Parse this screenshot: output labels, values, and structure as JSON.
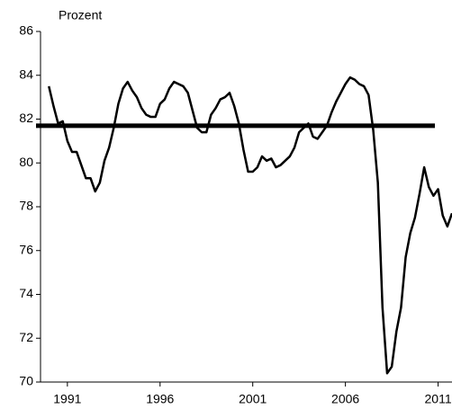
{
  "chart_data": {
    "type": "line",
    "y_label": "Prozent",
    "x": [
      1990,
      1990.25,
      1990.5,
      1990.75,
      1991,
      1991.25,
      1991.5,
      1991.75,
      1992,
      1992.25,
      1992.5,
      1992.75,
      1993,
      1993.25,
      1993.5,
      1993.75,
      1994,
      1994.25,
      1994.5,
      1994.75,
      1995,
      1995.25,
      1995.5,
      1995.75,
      1996,
      1996.25,
      1996.5,
      1996.75,
      1997,
      1997.25,
      1997.5,
      1997.75,
      1998,
      1998.25,
      1998.5,
      1998.75,
      1999,
      1999.25,
      1999.5,
      1999.75,
      2000,
      2000.25,
      2000.5,
      2000.75,
      2001,
      2001.25,
      2001.5,
      2001.75,
      2002,
      2002.25,
      2002.5,
      2002.75,
      2003,
      2003.25,
      2003.5,
      2003.75,
      2004,
      2004.25,
      2004.5,
      2004.75,
      2005,
      2005.25,
      2005.5,
      2005.75,
      2006,
      2006.25,
      2006.5,
      2006.75,
      2007,
      2007.25,
      2007.5,
      2007.75,
      2008,
      2008.25,
      2008.5,
      2008.75,
      2009,
      2009.25,
      2009.5,
      2009.75,
      2010,
      2010.25,
      2010.5,
      2010.75,
      2011,
      2011.25,
      2011.5,
      2011.75
    ],
    "series": [
      {
        "color": "#000000",
        "values": [
          83.5,
          82.6,
          81.8,
          81.9,
          81.0,
          80.5,
          80.5,
          79.9,
          79.3,
          79.3,
          78.7,
          79.1,
          80.1,
          80.7,
          81.6,
          82.7,
          83.4,
          83.7,
          83.3,
          83.0,
          82.5,
          82.2,
          82.1,
          82.1,
          82.7,
          82.9,
          83.4,
          83.7,
          83.6,
          83.5,
          83.2,
          82.4,
          81.6,
          81.4,
          81.4,
          82.2,
          82.5,
          82.9,
          83.0,
          83.2,
          82.6,
          81.8,
          80.6,
          79.6,
          79.6,
          79.8,
          80.3,
          80.1,
          80.2,
          79.8,
          79.9,
          80.1,
          80.3,
          80.7,
          81.4,
          81.6,
          81.8,
          81.2,
          81.1,
          81.4,
          81.7,
          82.3,
          82.8,
          83.2,
          83.6,
          83.9,
          83.8,
          83.6,
          83.5,
          83.1,
          81.5,
          79.1,
          73.4,
          70.4,
          70.7,
          72.3,
          73.4,
          75.7,
          76.8,
          77.5,
          78.6,
          79.8,
          78.9,
          78.5,
          78.8,
          77.6,
          77.1,
          77.7
        ]
      }
    ],
    "hline": {
      "value": 81.7,
      "color": "#000000"
    },
    "xlim": [
      1989.55,
      2011.75
    ],
    "xticks": [
      1991,
      1996,
      2001,
      2006,
      2011
    ],
    "ylim": [
      70,
      86
    ],
    "yticks": [
      70,
      72,
      74,
      76,
      78,
      80,
      82,
      84,
      86
    ]
  }
}
